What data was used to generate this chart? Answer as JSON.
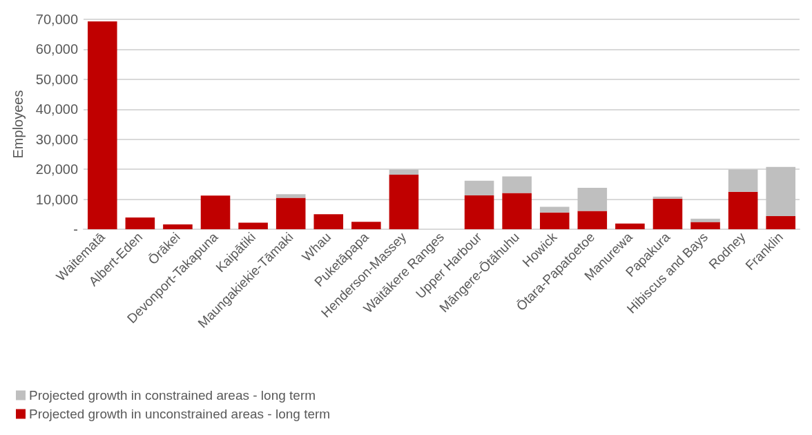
{
  "chart_data": {
    "type": "bar",
    "stacked": true,
    "ylabel": "Employees",
    "categories": [
      "Waitematā",
      "Albert-Eden",
      "Ōrākei",
      "Devonport-Takapuna",
      "Kaipātiki",
      "Maungakiekie-Tāmaki",
      "Whau",
      "Puketāpapa",
      "Henderson-Massey",
      "Waitākere Ranges",
      "Upper Harbour",
      "Māngere-Ōtāhuhu",
      "Howick",
      "Ōtara-Papatoetoe",
      "Manurewa",
      "Papakura",
      "Hibiscus and Bays",
      "Rodney",
      "Franklin"
    ],
    "series": [
      {
        "name": "Projected growth in unconstrained areas - long term",
        "color": "#c00000",
        "values": [
          69300,
          3900,
          1600,
          11200,
          2200,
          10500,
          5000,
          2500,
          18200,
          0,
          11300,
          12100,
          5600,
          6100,
          1900,
          10200,
          2400,
          12500,
          4400
        ]
      },
      {
        "name": "Projected growth in constrained areas - long term",
        "color": "#bfbfbf",
        "values": [
          0,
          0,
          0,
          0,
          0,
          1200,
          0,
          0,
          1700,
          0,
          4900,
          5500,
          1900,
          7700,
          0,
          700,
          1100,
          7400,
          16400
        ]
      }
    ],
    "ylim": [
      0,
      70000
    ],
    "yticks": [
      {
        "value": 0,
        "label": "-"
      },
      {
        "value": 10000,
        "label": "10,000"
      },
      {
        "value": 20000,
        "label": "20,000"
      },
      {
        "value": 30000,
        "label": "30,000"
      },
      {
        "value": 40000,
        "label": "40,000"
      },
      {
        "value": 50000,
        "label": "50,000"
      },
      {
        "value": 60000,
        "label": "60,000"
      },
      {
        "value": 70000,
        "label": "70,000"
      }
    ],
    "grid": "y",
    "legend": "bottom left"
  }
}
